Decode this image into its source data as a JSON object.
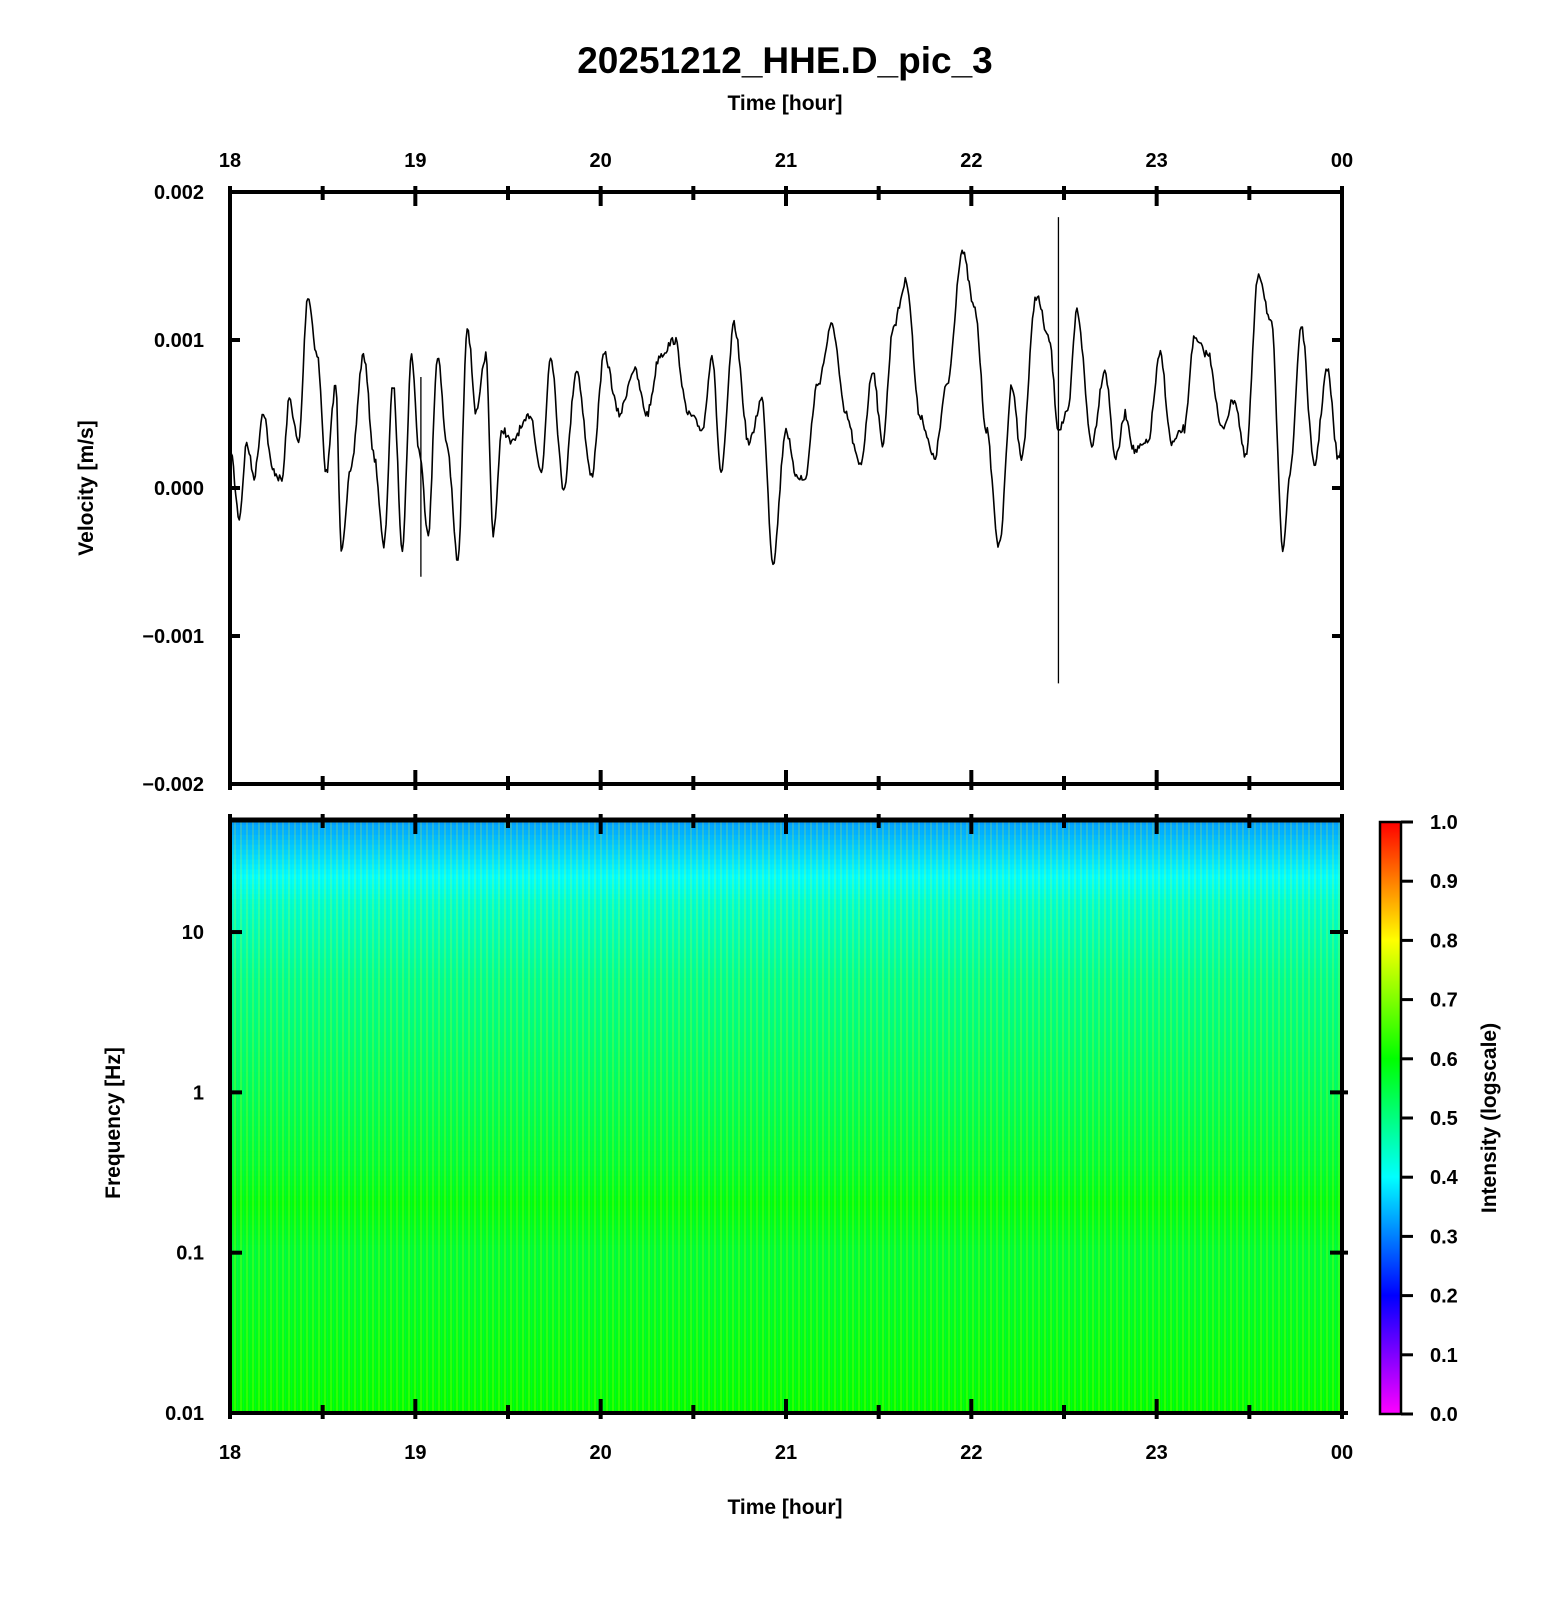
{
  "chart_data": [
    {
      "type": "line",
      "title": "20251212_HHE.D_pic_3",
      "xlabel": "Time [hour]",
      "ylabel": "Velocity [m/s]",
      "x_ticks": [
        "18",
        "19",
        "20",
        "21",
        "22",
        "23",
        "00"
      ],
      "x_range_hours": [
        18,
        24
      ],
      "y_ticks": [
        "0.002",
        "0.001",
        "0.000",
        "−0.001",
        "−0.002"
      ],
      "ylim": [
        -0.002,
        0.002
      ],
      "series": [
        {
          "x": [
            18.0,
            18.05,
            18.09,
            18.13,
            18.18,
            18.23,
            18.28,
            18.32,
            18.37,
            18.42,
            18.47,
            18.52,
            18.57,
            18.6,
            18.65,
            18.72,
            18.78,
            18.83,
            18.88,
            18.93,
            18.98,
            19.02,
            19.07,
            19.12,
            19.17,
            19.23,
            19.28,
            19.33,
            19.38,
            19.42,
            19.47,
            19.52,
            19.57,
            19.62,
            19.68,
            19.73,
            19.8,
            19.87,
            19.95,
            20.02,
            20.1,
            20.18,
            20.25,
            20.32,
            20.4,
            20.47,
            20.55,
            20.6,
            20.65,
            20.72,
            20.8,
            20.87,
            20.93,
            21.0,
            21.05,
            21.1,
            21.17,
            21.25,
            21.32,
            21.4,
            21.47,
            21.52,
            21.58,
            21.65,
            21.72,
            21.8,
            21.87,
            21.95,
            22.02,
            22.08,
            22.15,
            22.22,
            22.27,
            22.35,
            22.42,
            22.47,
            22.52,
            22.57,
            22.65,
            22.72,
            22.78,
            22.83,
            22.88,
            22.95,
            23.02,
            23.08,
            23.15,
            23.2,
            23.28,
            23.35,
            23.42,
            23.48,
            23.55,
            23.62,
            23.68,
            23.72,
            23.78,
            23.85,
            23.92,
            23.98,
            24.0
          ],
          "values": [
            0.00028,
            -0.0002,
            0.0003,
            8e-05,
            0.00052,
            0.00012,
            5e-05,
            0.0006,
            0.0003,
            0.0013,
            0.0009,
            0.0001,
            0.0007,
            -0.0004,
            0.0001,
            0.0009,
            0.0002,
            -0.0004,
            0.0007,
            -0.0004,
            0.0009,
            0.00025,
            -0.0003,
            0.0009,
            0.0003,
            -0.0005,
            0.0011,
            0.0005,
            0.0009,
            -0.0003,
            0.0004,
            0.0003,
            0.0004,
            0.0005,
            0.0001,
            0.0009,
            0.0,
            0.0008,
            8e-05,
            0.0009,
            0.0005,
            0.0008,
            0.0005,
            0.0009,
            0.001,
            0.0005,
            0.0004,
            0.0009,
            0.0001,
            0.0011,
            0.0003,
            0.0006,
            -0.0005,
            0.0004,
            0.0001,
            5e-05,
            0.0007,
            0.0011,
            0.0005,
            0.00015,
            0.0008,
            0.0003,
            0.0011,
            0.0014,
            0.0005,
            0.0002,
            0.0007,
            0.0016,
            0.0012,
            0.0004,
            -0.0004,
            0.0007,
            0.0002,
            0.0013,
            0.001,
            0.0004,
            0.0005,
            0.0012,
            0.0003,
            0.0008,
            0.0002,
            0.0005,
            0.00025,
            0.0003,
            0.0009,
            0.0003,
            0.0004,
            0.001,
            0.0009,
            0.0004,
            0.0006,
            0.0002,
            0.00145,
            0.0011,
            -0.0004,
            0.0001,
            0.0011,
            0.00015,
            0.0008,
            0.0002,
            0.00025
          ],
          "spikes": [
            {
              "x": 19.03,
              "min": -0.0006,
              "max": 0.00075
            },
            {
              "x": 22.47,
              "min": -0.00132,
              "max": 0.00183
            }
          ]
        }
      ]
    },
    {
      "type": "heatmap",
      "xlabel": "Time [hour]",
      "ylabel": "Frequency [Hz]",
      "x_ticks": [
        "18",
        "19",
        "20",
        "21",
        "22",
        "23",
        "00"
      ],
      "y_ticks": [
        "10",
        "1",
        "0.1",
        "0.01"
      ],
      "y_scale": "log",
      "ylim_hz": [
        0.01,
        50
      ],
      "colorbar": {
        "label": "Intensity (logscale)",
        "ticks": [
          "1.0",
          "0.9",
          "0.8",
          "0.7",
          "0.6",
          "0.5",
          "0.4",
          "0.3",
          "0.2",
          "0.1",
          "0.0"
        ],
        "range": [
          0.0,
          1.0
        ],
        "colormap": [
          "#ff00ff",
          "#0000ff",
          "#00ffff",
          "#00ff00",
          "#ffff00",
          "#ff0000"
        ]
      },
      "intensity_by_frequency": [
        {
          "freq_hz": 50,
          "intensity": 0.32
        },
        {
          "freq_hz": 30,
          "intensity": 0.37
        },
        {
          "freq_hz": 15,
          "intensity": 0.44
        },
        {
          "freq_hz": 5,
          "intensity": 0.49
        },
        {
          "freq_hz": 1,
          "intensity": 0.53
        },
        {
          "freq_hz": 0.35,
          "intensity": 0.56
        },
        {
          "freq_hz": 0.2,
          "intensity": 0.59
        },
        {
          "freq_hz": 0.1,
          "intensity": 0.56
        },
        {
          "freq_hz": 0.03,
          "intensity": 0.58
        },
        {
          "freq_hz": 0.01,
          "intensity": 0.6
        }
      ]
    }
  ]
}
